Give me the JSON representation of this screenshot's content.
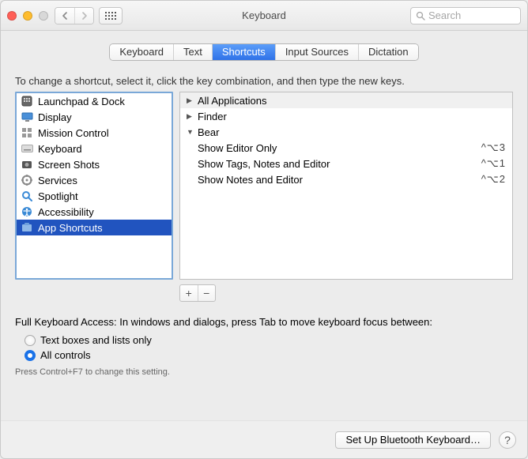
{
  "window": {
    "title": "Keyboard",
    "search_placeholder": "Search"
  },
  "tabs": [
    {
      "label": "Keyboard",
      "active": false
    },
    {
      "label": "Text",
      "active": false
    },
    {
      "label": "Shortcuts",
      "active": true
    },
    {
      "label": "Input Sources",
      "active": false
    },
    {
      "label": "Dictation",
      "active": false
    }
  ],
  "description": "To change a shortcut, select it, click the key combination, and then type the new keys.",
  "categories": [
    {
      "name": "Launchpad & Dock",
      "icon": "launchpad",
      "selected": false
    },
    {
      "name": "Display",
      "icon": "display",
      "selected": false
    },
    {
      "name": "Mission Control",
      "icon": "mission",
      "selected": false
    },
    {
      "name": "Keyboard",
      "icon": "keyboard",
      "selected": false
    },
    {
      "name": "Screen Shots",
      "icon": "screenshot",
      "selected": false
    },
    {
      "name": "Services",
      "icon": "services",
      "selected": false
    },
    {
      "name": "Spotlight",
      "icon": "spotlight",
      "selected": false
    },
    {
      "name": "Accessibility",
      "icon": "accessibility",
      "selected": false
    },
    {
      "name": "App Shortcuts",
      "icon": "app",
      "selected": true
    }
  ],
  "tree": [
    {
      "label": "All Applications",
      "expanded": false,
      "level": 0,
      "header": true
    },
    {
      "label": "Finder",
      "expanded": false,
      "level": 0
    },
    {
      "label": "Bear",
      "expanded": true,
      "level": 0
    },
    {
      "label": "Show Editor Only",
      "level": 1,
      "shortcut": "^⌥3"
    },
    {
      "label": "Show Tags, Notes and Editor",
      "level": 1,
      "shortcut": "^⌥1"
    },
    {
      "label": "Show Notes and Editor",
      "level": 1,
      "shortcut": "^⌥2"
    }
  ],
  "fka": {
    "label": "Full Keyboard Access: In windows and dialogs, press Tab to move keyboard focus between:",
    "options": [
      {
        "label": "Text boxes and lists only",
        "checked": false
      },
      {
        "label": "All controls",
        "checked": true
      }
    ],
    "hint": "Press Control+F7 to change this setting."
  },
  "footer": {
    "bluetooth": "Set Up Bluetooth Keyboard…"
  },
  "colors": {
    "accent": "#2f72e8",
    "selection": "#2154bf",
    "window_bg": "#ececec"
  }
}
